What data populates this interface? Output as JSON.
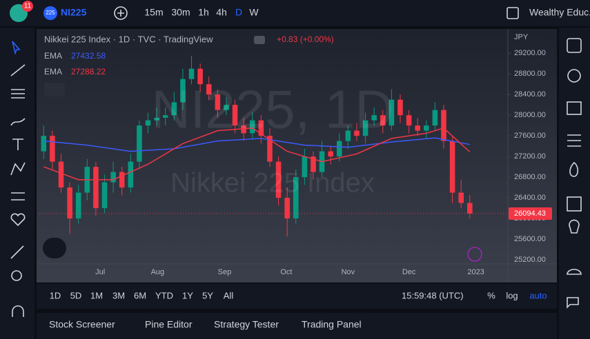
{
  "toolbar": {
    "badge": "11",
    "symbol_icon": "225",
    "symbol": "NI225",
    "intervals": [
      "15m",
      "30m",
      "1h",
      "4h",
      "D",
      "W"
    ],
    "account": "Wealthy Educ..."
  },
  "chart_data": {
    "type": "candlestick",
    "title": "Nikkei 225 Index · 1D · TVC · TradingView",
    "change": "+0.83 (+0.00%)",
    "watermark": [
      "NI225, 1D",
      "Nikkei 225 Index"
    ],
    "currency": "JPY",
    "up_color": "#089981",
    "down_color": "#f23645",
    "open": [
      27300,
      27600,
      27100,
      26600,
      26000,
      26500,
      27000,
      26200,
      26700,
      26900,
      26600,
      27100,
      27800,
      27900,
      27950,
      28000,
      28250,
      28700,
      28900,
      28600,
      28400,
      28100,
      28200,
      27800,
      27650,
      27900,
      27600,
      27100,
      26400,
      26000,
      26800,
      27200,
      26900,
      27300,
      27200,
      27500,
      27700,
      27600,
      27900,
      28000,
      27800,
      28300,
      28000,
      27800,
      27700,
      27800,
      28100,
      27500,
      26500,
      26300
    ],
    "high": [
      27800,
      27700,
      27250,
      26700,
      26650,
      27150,
      27100,
      26850,
      27100,
      27000,
      27250,
      27900,
      28050,
      28150,
      28150,
      28450,
      28900,
      29150,
      29000,
      28750,
      28500,
      28350,
      28300,
      27950,
      28050,
      28000,
      27750,
      27200,
      26600,
      26950,
      27350,
      27300,
      27500,
      27400,
      27650,
      27800,
      27850,
      28050,
      28150,
      28100,
      28500,
      28400,
      28100,
      27950,
      27900,
      28250,
      28200,
      27600,
      26750,
      26450
    ],
    "low": [
      27150,
      26950,
      26500,
      25700,
      25900,
      26350,
      26050,
      26100,
      26500,
      26450,
      26500,
      26950,
      27650,
      27800,
      27800,
      27900,
      28100,
      28600,
      28450,
      28300,
      27950,
      28000,
      27650,
      27500,
      27550,
      27450,
      27000,
      26250,
      25650,
      25900,
      26650,
      26750,
      26800,
      27050,
      27100,
      27350,
      27500,
      27450,
      27800,
      27650,
      27700,
      27850,
      27650,
      27600,
      27550,
      27700,
      27350,
      26300,
      26200,
      26000
    ],
    "close": [
      27600,
      27100,
      26600,
      26000,
      26500,
      27000,
      26200,
      26700,
      26900,
      26600,
      27100,
      27800,
      27900,
      27950,
      28000,
      28250,
      28700,
      28900,
      28600,
      28400,
      28100,
      28200,
      27800,
      27650,
      27900,
      27600,
      27100,
      26400,
      26000,
      26800,
      27200,
      26900,
      27300,
      27200,
      27500,
      27700,
      27600,
      27900,
      28000,
      27800,
      28300,
      28000,
      27800,
      27700,
      27800,
      28100,
      27500,
      26500,
      26300,
      26094.43
    ],
    "series": [
      {
        "name": "EMA",
        "color": "#3d5afe",
        "x": [
          0,
          5,
          10,
          15,
          20,
          25,
          30,
          35,
          40,
          45,
          49
        ],
        "values": [
          27500,
          27420,
          27300,
          27350,
          27500,
          27550,
          27420,
          27380,
          27480,
          27560,
          27432.58
        ]
      },
      {
        "name": "EMA",
        "color": "#f23645",
        "x": [
          0,
          4,
          8,
          12,
          16,
          20,
          24,
          28,
          32,
          36,
          40,
          44,
          46,
          49
        ],
        "values": [
          27000,
          26750,
          26750,
          27050,
          27450,
          27700,
          27750,
          27300,
          27100,
          27250,
          27550,
          27650,
          27750,
          27288.22
        ]
      }
    ],
    "xlim": [
      -0.5,
      53.3
    ],
    "xticks": [
      {
        "value": 6.5,
        "label": "Jul"
      },
      {
        "value": 13.1,
        "label": "Aug"
      },
      {
        "value": 20.8,
        "label": "Sep"
      },
      {
        "value": 27.9,
        "label": "Oct"
      },
      {
        "value": 35,
        "label": "Nov"
      },
      {
        "value": 42,
        "label": "Dec"
      },
      {
        "value": 49.7,
        "label": "2023"
      }
    ],
    "ylim": [
      25120,
      29630
    ],
    "yticks": [
      {
        "value": 25200,
        "label": "25200.00"
      },
      {
        "value": 25600,
        "label": "25600.00"
      },
      {
        "value": 26000,
        "label": "26000.00"
      },
      {
        "value": 26400,
        "label": "26400.00"
      },
      {
        "value": 26800,
        "label": "26800.00"
      },
      {
        "value": 27200,
        "label": "27200.00"
      },
      {
        "value": 27600,
        "label": "27600.00"
      },
      {
        "value": 28000,
        "label": "28000.00"
      },
      {
        "value": 28400,
        "label": "28400.00"
      },
      {
        "value": 28800,
        "label": "28800.00"
      },
      {
        "value": 29200,
        "label": "29200.00"
      }
    ]
  },
  "range_bar": {
    "ranges": [
      "1D",
      "5D",
      "1M",
      "3M",
      "6M",
      "YTD",
      "1Y",
      "5Y",
      "All"
    ],
    "time": "15:59:48 (UTC)",
    "options": [
      "%",
      "log",
      "auto"
    ]
  },
  "tabs": [
    "Stock Screener",
    "Pine Editor",
    "Strategy Tester",
    "Trading Panel"
  ]
}
